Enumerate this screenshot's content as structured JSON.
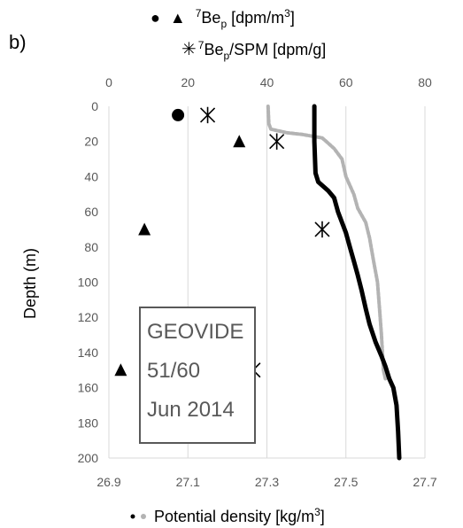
{
  "chart_data": {
    "type": "scatter",
    "panel_label": "b)",
    "legend_top": {
      "line1": {
        "text": "• ▲ ⁷Beₚ [dpm/m³]"
      },
      "line2": {
        "text": "∗ ⁷Beₚ/SPM [dpm/g]"
      }
    },
    "legend_bottom": {
      "text": "• • Potential density [kg/m³]"
    },
    "ylabel": "Depth (m)",
    "y_axis": {
      "range": [
        0,
        200
      ],
      "ticks": [
        0,
        20,
        40,
        60,
        80,
        100,
        120,
        140,
        160,
        180,
        200
      ],
      "tick_labels": [
        "0",
        "20",
        "40",
        "60",
        "80",
        "100",
        "120",
        "140",
        "160",
        "180",
        "200"
      ],
      "inverted": true
    },
    "x_top": {
      "range": [
        0,
        80
      ],
      "ticks": [
        0,
        20,
        40,
        60,
        80
      ],
      "tick_labels": [
        "0",
        "20",
        "40",
        "60",
        "80"
      ]
    },
    "x_bottom": {
      "range": [
        26.9,
        27.7
      ],
      "ticks": [
        26.9,
        27.1,
        27.3,
        27.5,
        27.7
      ],
      "tick_labels": [
        "26.9",
        "27.1",
        "27.3",
        "27.5",
        "27.7"
      ]
    },
    "station_box": {
      "lines": [
        "GEOVIDE",
        "51/60",
        "Jun 2014"
      ]
    },
    "series": [
      {
        "name": "7Bep circle",
        "marker": "circle",
        "axis": "top",
        "color": "#000000",
        "points": [
          {
            "x": 17.5,
            "depth": 5
          }
        ]
      },
      {
        "name": "7Bep triangle",
        "marker": "triangle",
        "axis": "top",
        "color": "#000000",
        "points": [
          {
            "x": 33,
            "depth": 20
          },
          {
            "x": 9,
            "depth": 70
          },
          {
            "x": 3,
            "depth": 150
          }
        ]
      },
      {
        "name": "7Bep/SPM",
        "marker": "asterisk",
        "axis": "top",
        "color": "#000000",
        "points": [
          {
            "x": 25,
            "depth": 5
          },
          {
            "x": 42.5,
            "depth": 20
          },
          {
            "x": 54,
            "depth": 70
          },
          {
            "x": 36.5,
            "depth": 150
          }
        ]
      },
      {
        "name": "Potential density (gray)",
        "marker": "line",
        "axis": "bottom",
        "color": "#b3b3b3",
        "points": [
          {
            "x": 27.303,
            "depth": 0
          },
          {
            "x": 27.305,
            "depth": 10
          },
          {
            "x": 27.31,
            "depth": 13
          },
          {
            "x": 27.35,
            "depth": 15
          },
          {
            "x": 27.39,
            "depth": 16
          },
          {
            "x": 27.44,
            "depth": 18
          },
          {
            "x": 27.47,
            "depth": 24
          },
          {
            "x": 27.49,
            "depth": 30
          },
          {
            "x": 27.5,
            "depth": 40
          },
          {
            "x": 27.52,
            "depth": 50
          },
          {
            "x": 27.53,
            "depth": 58
          },
          {
            "x": 27.55,
            "depth": 66
          },
          {
            "x": 27.56,
            "depth": 75
          },
          {
            "x": 27.57,
            "depth": 88
          },
          {
            "x": 27.58,
            "depth": 100
          },
          {
            "x": 27.585,
            "depth": 115
          },
          {
            "x": 27.59,
            "depth": 130
          },
          {
            "x": 27.595,
            "depth": 150
          },
          {
            "x": 27.6,
            "depth": 155
          }
        ]
      },
      {
        "name": "Potential density (black)",
        "marker": "line",
        "axis": "bottom",
        "color": "#000000",
        "points": [
          {
            "x": 27.42,
            "depth": 0
          },
          {
            "x": 27.42,
            "depth": 20
          },
          {
            "x": 27.423,
            "depth": 38
          },
          {
            "x": 27.43,
            "depth": 43
          },
          {
            "x": 27.455,
            "depth": 48
          },
          {
            "x": 27.47,
            "depth": 52
          },
          {
            "x": 27.48,
            "depth": 60
          },
          {
            "x": 27.49,
            "depth": 66
          },
          {
            "x": 27.5,
            "depth": 72
          },
          {
            "x": 27.51,
            "depth": 80
          },
          {
            "x": 27.52,
            "depth": 88
          },
          {
            "x": 27.53,
            "depth": 96
          },
          {
            "x": 27.54,
            "depth": 105
          },
          {
            "x": 27.55,
            "depth": 115
          },
          {
            "x": 27.56,
            "depth": 124
          },
          {
            "x": 27.575,
            "depth": 134
          },
          {
            "x": 27.59,
            "depth": 142
          },
          {
            "x": 27.6,
            "depth": 148
          },
          {
            "x": 27.61,
            "depth": 155
          },
          {
            "x": 27.62,
            "depth": 160
          },
          {
            "x": 27.628,
            "depth": 170
          },
          {
            "x": 27.632,
            "depth": 185
          },
          {
            "x": 27.635,
            "depth": 200
          }
        ]
      }
    ]
  }
}
